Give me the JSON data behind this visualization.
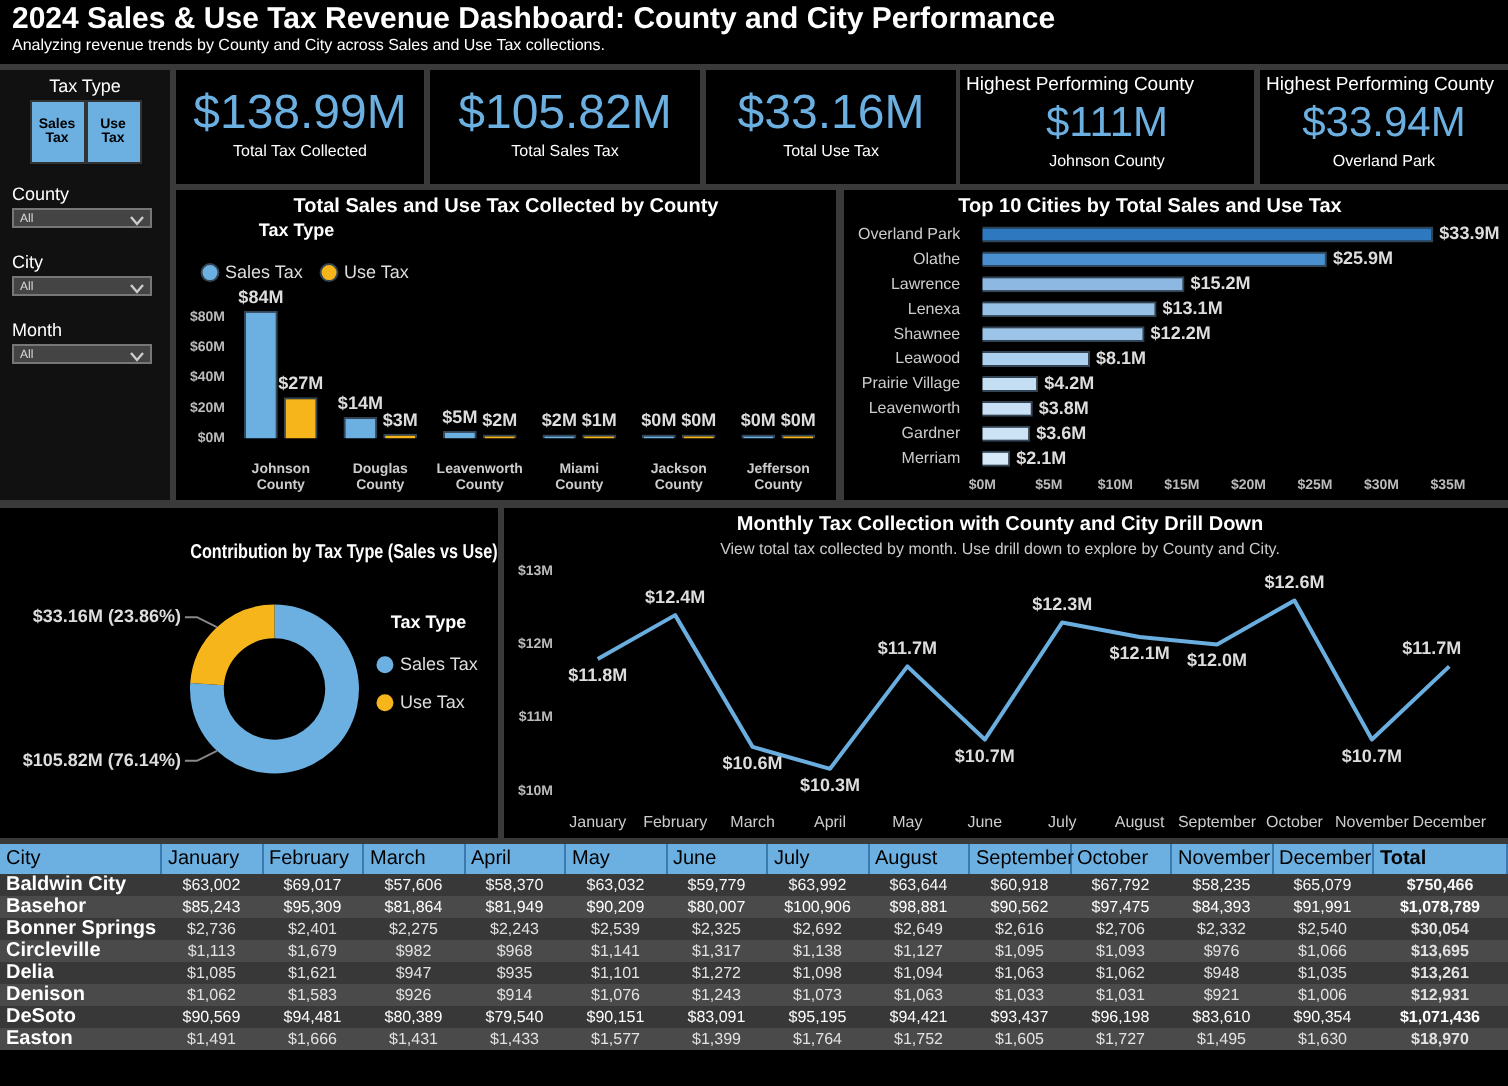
{
  "chart_data": [
    {
      "type": "other",
      "title": "2024 Sales & Use Tax Revenue Dashboard: County and City Performance",
      "subtitle": "Analyzing revenue trends by County and City across Sales and Use Tax collections."
    },
    {
      "type": "other",
      "title": "Tax Type",
      "annotations": [
        "Sales Tax",
        "Use Tax",
        "County",
        "All",
        "City",
        "All",
        "Month",
        "All"
      ]
    },
    {
      "type": "other",
      "annotations": [
        "$138.99M",
        "Total Tax Collected"
      ]
    },
    {
      "type": "other",
      "annotations": [
        "$105.82M",
        "Total Sales Tax"
      ]
    },
    {
      "type": "other",
      "annotations": [
        "$33.16M",
        "Total Use Tax"
      ]
    },
    {
      "type": "other",
      "title": "Highest Performing County",
      "annotations": [
        "$111M",
        "Johnson County"
      ]
    },
    {
      "type": "other",
      "title": "Highest Performing County",
      "annotations": [
        "$33.94M",
        "Overland Park"
      ]
    },
    {
      "type": "bar",
      "title": "Total Sales and Use Tax Collected by County",
      "legend_title": "Tax Type",
      "legend": "top left",
      "categories": [
        "Johnson County",
        "Douglas County",
        "Leavenworth County",
        "Miami County",
        "Jackson County",
        "Jefferson County"
      ],
      "series": [
        {
          "name": "Sales Tax",
          "color": "#6cb0e2",
          "values": [
            84,
            14,
            5,
            2,
            0,
            0
          ],
          "value_labels": [
            "$84M",
            "$14M",
            "$5M",
            "$2M",
            "$0M",
            "$0M"
          ]
        },
        {
          "name": "Use Tax",
          "color": "#f7b51c",
          "values": [
            27,
            3,
            2,
            1,
            0,
            0
          ],
          "value_labels": [
            "$27M",
            "$3M",
            "$2M",
            "$1M",
            "$0M",
            "$0M"
          ]
        }
      ],
      "ylim": [
        0,
        90
      ],
      "yticks": [
        {
          "value": 0,
          "label": "$0M"
        },
        {
          "value": 20,
          "label": "$20M"
        },
        {
          "value": 40,
          "label": "$40M"
        },
        {
          "value": 60,
          "label": "$60M"
        },
        {
          "value": 80,
          "label": "$80M"
        }
      ]
    },
    {
      "type": "bar",
      "orientation": "horizontal",
      "title": "Top 10 Cities by Total Sales and Use Tax",
      "categories": [
        "Overland Park",
        "Olathe",
        "Lawrence",
        "Lenexa",
        "Shawnee",
        "Leawood",
        "Prairie Village",
        "Leavenworth",
        "Gardner",
        "Merriam"
      ],
      "values": [
        33.9,
        25.9,
        15.2,
        13.1,
        12.2,
        8.1,
        4.2,
        3.8,
        3.6,
        2.1
      ],
      "colors": [
        "#2e78c0",
        "#4a8fd0",
        "#8cb8e2",
        "#97c0e6",
        "#9cc4e8",
        "#acd0ee",
        "#c4def4",
        "#c8e0f5",
        "#cce3f6",
        "#d6e9f8"
      ],
      "value_labels": [
        "$33.9M",
        "$25.9M",
        "$15.2M",
        "$13.1M",
        "$12.2M",
        "$8.1M",
        "$4.2M",
        "$3.8M",
        "$3.6M",
        "$2.1M"
      ],
      "xlim": [
        0,
        35
      ],
      "xticks": [
        {
          "value": 0,
          "label": "$0M"
        },
        {
          "value": 5,
          "label": "$5M"
        },
        {
          "value": 10,
          "label": "$10M"
        },
        {
          "value": 15,
          "label": "$15M"
        },
        {
          "value": 20,
          "label": "$20M"
        },
        {
          "value": 25,
          "label": "$25M"
        },
        {
          "value": 30,
          "label": "$30M"
        },
        {
          "value": 35,
          "label": "$35M"
        }
      ]
    },
    {
      "type": "donut",
      "title": "Contribution by Tax Type (Sales vs Use)",
      "legend_title": "Tax Type",
      "legend": "right",
      "categories": [
        "Sales Tax",
        "Use Tax"
      ],
      "values": [
        76.14,
        23.86
      ],
      "colors": [
        "#6cb0e2",
        "#f7b51c"
      ],
      "value_labels": [
        "$105.82M (76.14%)",
        "$33.16M (23.86%)"
      ]
    },
    {
      "type": "line",
      "title": "Monthly Tax Collection with County and City Drill Down",
      "subtitle": "View total tax collected by month. Use drill down to explore by County and City.",
      "categories": [
        "January",
        "February",
        "March",
        "April",
        "May",
        "June",
        "July",
        "August",
        "September",
        "October",
        "November",
        "December"
      ],
      "values": [
        11.8,
        12.4,
        10.6,
        10.3,
        11.7,
        10.7,
        12.3,
        12.1,
        12.0,
        12.6,
        10.7,
        11.7
      ],
      "color": "#6aaee0",
      "marker": "none",
      "line_style": "solid",
      "value_labels": [
        "$11.8M",
        "$12.4M",
        "$10.6M",
        "$10.3M",
        "$11.7M",
        "$10.7M",
        "$12.3M",
        "$12.1M",
        "$12.0M",
        "$12.6M",
        "$10.7M",
        "$11.7M"
      ],
      "ylim": [
        10,
        13
      ],
      "yticks": [
        {
          "value": 10,
          "label": "$10M"
        },
        {
          "value": 11,
          "label": "$11M"
        },
        {
          "value": 12,
          "label": "$12M"
        },
        {
          "value": 13,
          "label": "$13M"
        }
      ]
    },
    {
      "type": "heatmap",
      "ylabel": "City",
      "categories": [
        "January",
        "February",
        "March",
        "April",
        "May",
        "June",
        "July",
        "August",
        "September",
        "October",
        "November",
        "December",
        "Total"
      ],
      "y_categories": [
        "Baldwin City",
        "Basehor",
        "Bonner Springs",
        "Circleville",
        "Delia",
        "Denison",
        "DeSoto",
        "Easton"
      ],
      "cells": [
        [
          63002,
          69017,
          57606,
          58370,
          63032,
          59779,
          63992,
          63644,
          60918,
          67792,
          58235,
          65079,
          750466
        ],
        [
          85243,
          95309,
          81864,
          81949,
          90209,
          80007,
          100906,
          98881,
          90562,
          97475,
          84393,
          91991,
          1078789
        ],
        [
          2736,
          2401,
          2275,
          2243,
          2539,
          2325,
          2692,
          2649,
          2616,
          2706,
          2332,
          2540,
          30054
        ],
        [
          1113,
          1679,
          982,
          968,
          1141,
          1317,
          1138,
          1127,
          1095,
          1093,
          976,
          1066,
          13695
        ],
        [
          1085,
          1621,
          947,
          935,
          1101,
          1272,
          1098,
          1094,
          1063,
          1062,
          948,
          1035,
          13261
        ],
        [
          1062,
          1583,
          926,
          914,
          1076,
          1243,
          1073,
          1063,
          1033,
          1031,
          921,
          1006,
          12931
        ],
        [
          90569,
          94481,
          80389,
          79540,
          90151,
          83091,
          95195,
          94421,
          93437,
          96198,
          83610,
          90354,
          1071436
        ],
        [
          1491,
          1666,
          1431,
          1433,
          1577,
          1399,
          1764,
          1752,
          1605,
          1727,
          1495,
          1630,
          18970
        ]
      ],
      "cell_labels": [
        [
          "$63,002",
          "$69,017",
          "$57,606",
          "$58,370",
          "$63,032",
          "$59,779",
          "$63,992",
          "$63,644",
          "$60,918",
          "$67,792",
          "$58,235",
          "$65,079",
          "$750,466"
        ],
        [
          "$85,243",
          "$95,309",
          "$81,864",
          "$81,949",
          "$90,209",
          "$80,007",
          "$100,906",
          "$98,881",
          "$90,562",
          "$97,475",
          "$84,393",
          "$91,991",
          "$1,078,789"
        ],
        [
          "$2,736",
          "$2,401",
          "$2,275",
          "$2,243",
          "$2,539",
          "$2,325",
          "$2,692",
          "$2,649",
          "$2,616",
          "$2,706",
          "$2,332",
          "$2,540",
          "$30,054"
        ],
        [
          "$1,113",
          "$1,679",
          "$982",
          "$968",
          "$1,141",
          "$1,317",
          "$1,138",
          "$1,127",
          "$1,095",
          "$1,093",
          "$976",
          "$1,066",
          "$13,695"
        ],
        [
          "$1,085",
          "$1,621",
          "$947",
          "$935",
          "$1,101",
          "$1,272",
          "$1,098",
          "$1,094",
          "$1,063",
          "$1,062",
          "$948",
          "$1,035",
          "$13,261"
        ],
        [
          "$1,062",
          "$1,583",
          "$926",
          "$914",
          "$1,076",
          "$1,243",
          "$1,073",
          "$1,063",
          "$1,033",
          "$1,031",
          "$921",
          "$1,006",
          "$12,931"
        ],
        [
          "$90,569",
          "$94,481",
          "$80,389",
          "$79,540",
          "$90,151",
          "$83,091",
          "$95,195",
          "$94,421",
          "$93,437",
          "$96,198",
          "$83,610",
          "$90,354",
          "$1,071,436"
        ],
        [
          "$1,491",
          "$1,666",
          "$1,431",
          "$1,433",
          "$1,577",
          "$1,399",
          "$1,764",
          "$1,752",
          "$1,605",
          "$1,727",
          "$1,495",
          "$1,630",
          "$18,970"
        ]
      ]
    }
  ]
}
